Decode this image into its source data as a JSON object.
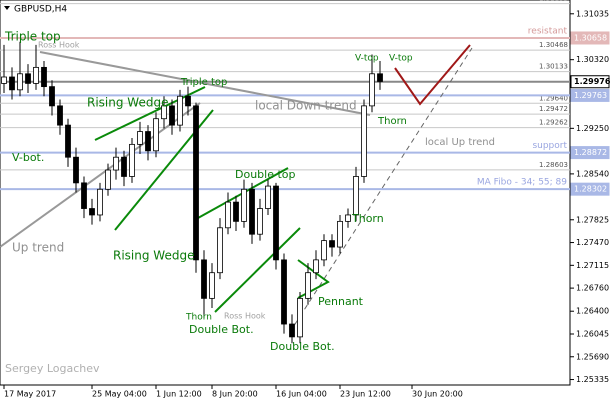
{
  "chart_data": {
    "type": "candlestick",
    "title": "GBPUSD,H4",
    "ylim": [
      1.2525,
      1.3125
    ],
    "yticks": [
      {
        "value": 1.31035,
        "label": "1.31035"
      },
      {
        "value": 1.3032,
        "label": "1.30320"
      },
      {
        "value": 1.2925,
        "label": "1.29250"
      },
      {
        "value": 1.2854,
        "label": "1.28540"
      },
      {
        "value": 1.27825,
        "label": "1.27825"
      },
      {
        "value": 1.2747,
        "label": "1.27470"
      },
      {
        "value": 1.27115,
        "label": "1.27115"
      },
      {
        "value": 1.2676,
        "label": "1.26760"
      },
      {
        "value": 1.264,
        "label": "1.26400"
      },
      {
        "value": 1.26045,
        "label": "1.26045"
      },
      {
        "value": 1.2569,
        "label": "1.25690"
      },
      {
        "value": 1.25335,
        "label": "1.25335"
      }
    ],
    "xticks": [
      {
        "value": 0,
        "label": "17 May 2017"
      },
      {
        "value": 11,
        "label": "25 May 04:00"
      },
      {
        "value": 19,
        "label": "1 Jun 12:00"
      },
      {
        "value": 26,
        "label": "8 Jun 20:00"
      },
      {
        "value": 34,
        "label": "16 Jun 04:00"
      },
      {
        "value": 42,
        "label": "23 Jun 12:00"
      },
      {
        "value": 51,
        "label": "30 Jun 20:00"
      }
    ],
    "series": {
      "open": [
        1.2995,
        1.3005,
        1.2985,
        1.301,
        1.2995,
        1.302,
        1.299,
        1.296,
        1.293,
        1.288,
        1.284,
        1.28,
        1.279,
        1.283,
        1.286,
        1.288,
        1.285,
        1.29,
        1.292,
        1.289,
        1.294,
        1.296,
        1.293,
        1.2975,
        1.296,
        1.272,
        1.266,
        1.27,
        1.277,
        1.281,
        1.278,
        1.283,
        1.276,
        1.28,
        1.2835,
        1.272,
        1.262,
        1.26,
        1.266,
        1.27,
        1.272,
        1.275,
        1.274,
        1.278,
        1.279,
        1.285,
        1.296,
        1.301
      ],
      "high": [
        1.3055,
        1.302,
        1.306,
        1.3025,
        1.3055,
        1.303,
        1.3,
        1.297,
        1.294,
        1.2895,
        1.285,
        1.2815,
        1.284,
        1.287,
        1.2895,
        1.289,
        1.291,
        1.2935,
        1.293,
        1.295,
        1.2975,
        1.297,
        1.2985,
        1.299,
        1.2965,
        1.2735,
        1.2715,
        1.2785,
        1.2825,
        1.282,
        1.2845,
        1.284,
        1.2815,
        1.2845,
        1.284,
        1.273,
        1.2635,
        1.267,
        1.2715,
        1.2735,
        1.276,
        1.276,
        1.279,
        1.28,
        1.2865,
        1.297,
        1.304,
        1.303
      ],
      "low": [
        1.298,
        1.297,
        1.2975,
        1.298,
        1.2985,
        1.2975,
        1.2945,
        1.2915,
        1.2865,
        1.2825,
        1.2785,
        1.2775,
        1.278,
        1.282,
        1.2845,
        1.2835,
        1.284,
        1.2885,
        1.2875,
        1.288,
        1.2925,
        1.2915,
        1.292,
        1.2945,
        1.27,
        1.263,
        1.2645,
        1.269,
        1.276,
        1.2765,
        1.277,
        1.2745,
        1.275,
        1.279,
        1.2705,
        1.2605,
        1.259,
        1.259,
        1.265,
        1.269,
        1.271,
        1.2725,
        1.273,
        1.277,
        1.278,
        1.284,
        1.295,
        1.2985
      ],
      "close": [
        1.3005,
        1.2985,
        1.301,
        1.2995,
        1.302,
        1.299,
        1.296,
        1.293,
        1.288,
        1.284,
        1.28,
        1.279,
        1.283,
        1.286,
        1.288,
        1.285,
        1.29,
        1.292,
        1.289,
        1.294,
        1.296,
        1.293,
        1.2975,
        1.296,
        1.272,
        1.266,
        1.27,
        1.277,
        1.281,
        1.278,
        1.283,
        1.276,
        1.28,
        1.2835,
        1.272,
        1.262,
        1.26,
        1.266,
        1.27,
        1.272,
        1.275,
        1.274,
        1.278,
        1.279,
        1.285,
        1.296,
        1.301,
        1.2998
      ]
    },
    "levels": [
      {
        "value": 1.31193,
        "label": "1.31193"
      },
      {
        "value": 1.30468,
        "label": "1.30468"
      },
      {
        "value": 1.30133,
        "label": "1.30133"
      },
      {
        "value": 1.2964,
        "label": "1.29640"
      },
      {
        "value": 1.29472,
        "label": "1.29472"
      },
      {
        "value": 1.29262,
        "label": "1.29262"
      },
      {
        "value": 1.28603,
        "label": "1.28603"
      }
    ],
    "price_boxes": [
      {
        "value": 1.30658,
        "label": "1.30658",
        "name": "resistant",
        "color": "#e3b8b8"
      },
      {
        "value": 1.29976,
        "label": "1.29976",
        "color": "#ffffff"
      },
      {
        "value": 1.29763,
        "label": "1.29763",
        "color": "#a9b8e6"
      },
      {
        "value": 1.28872,
        "label": "1.28872",
        "name": "support",
        "color": "#a9b8e6"
      },
      {
        "value": 1.28302,
        "label": "1.28302",
        "name": "MA Fibo - 34; 55; 89",
        "color": "#a9b8e6"
      }
    ],
    "annotations": [
      {
        "text": "Triple top",
        "color": "#0a7a0a"
      },
      {
        "text": "Ross Hook",
        "color": "#a0a0a0"
      },
      {
        "text": "V-bot.",
        "color": "#0a7a0a"
      },
      {
        "text": "Rising Wedge",
        "color": "#0a7a0a"
      },
      {
        "text": "Triple top",
        "color": "#0a7a0a"
      },
      {
        "text": "local Down trend",
        "color": "#909090"
      },
      {
        "text": "V-top",
        "color": "#0a7a0a"
      },
      {
        "text": "V-top",
        "color": "#0a7a0a"
      },
      {
        "text": "Thorn",
        "color": "#0a7a0a"
      },
      {
        "text": "local  Up trend",
        "color": "#909090"
      },
      {
        "text": "Double top",
        "color": "#0a7a0a"
      },
      {
        "text": "Thorn",
        "color": "#0a7a0a"
      },
      {
        "text": "Rising Wedge",
        "color": "#0a7a0a"
      },
      {
        "text": "Up trend",
        "color": "#909090"
      },
      {
        "text": "Thorn",
        "color": "#0a7a0a"
      },
      {
        "text": "Ross Hook",
        "color": "#a0a0a0"
      },
      {
        "text": "Double Bot.",
        "color": "#0a7a0a"
      },
      {
        "text": "Pennant",
        "color": "#0a7a0a"
      },
      {
        "text": "Double Bot.",
        "color": "#0a7a0a"
      },
      {
        "text": "Sergey Logachev",
        "color": "#b0b0b0"
      }
    ]
  }
}
